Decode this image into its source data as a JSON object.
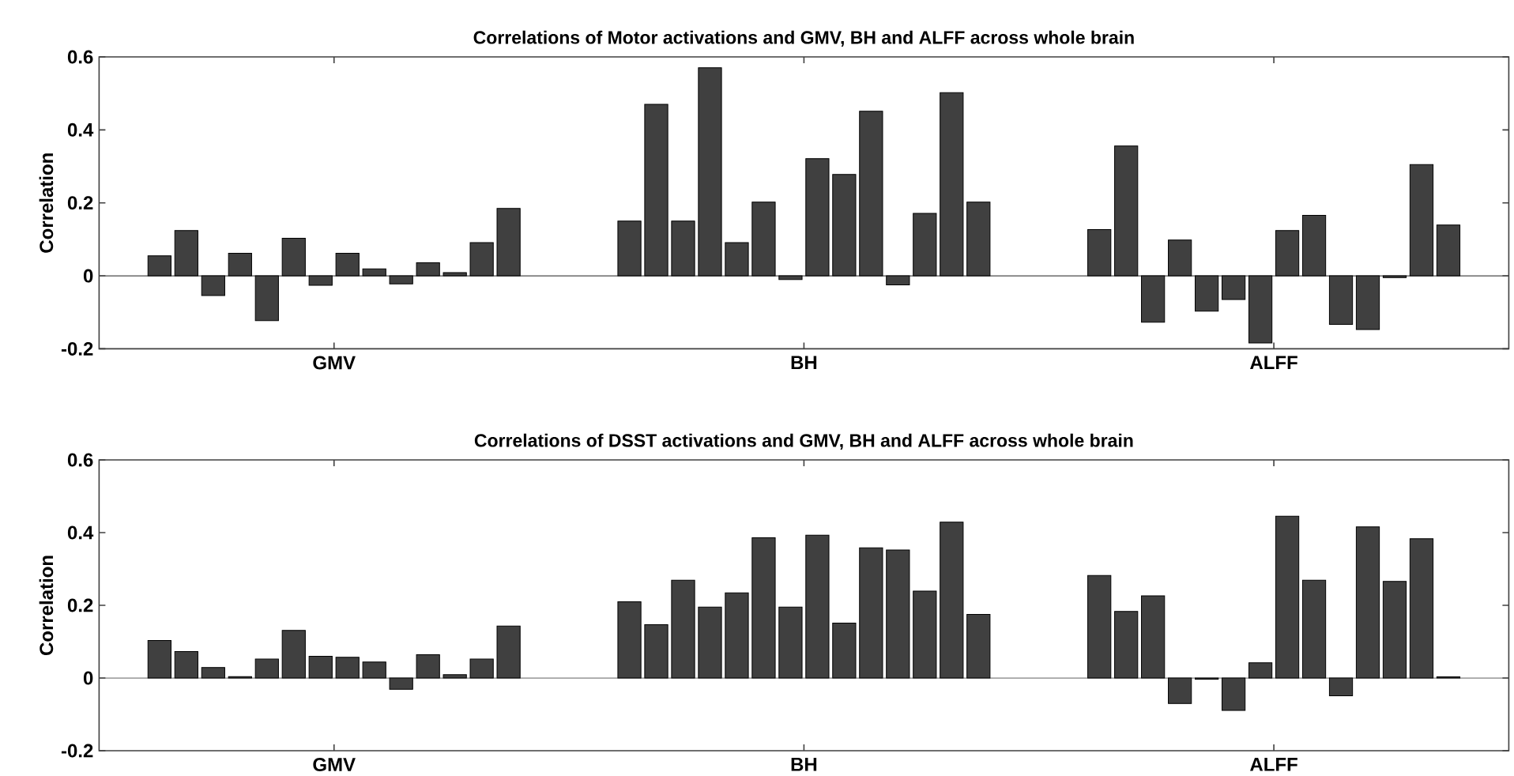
{
  "chart_data": [
    {
      "type": "bar",
      "title": "Correlations of Motor activations and GMV, BH and ALFF across whole brain",
      "ylabel": "Correlation",
      "categories": [
        "GMV",
        "BH",
        "ALFF"
      ],
      "ylim": [
        -0.2,
        0.6
      ],
      "yticks": [
        -0.2,
        0,
        0.2,
        0.4,
        0.6
      ],
      "series": [
        {
          "color": "#404040",
          "values": [
            0.055,
            0.15,
            0.127
          ]
        },
        {
          "color": "#404040",
          "values": [
            0.124,
            0.47,
            0.356
          ]
        },
        {
          "color": "#404040",
          "values": [
            -0.054,
            0.15,
            -0.127
          ]
        },
        {
          "color": "#404040",
          "values": [
            0.062,
            0.57,
            0.098
          ]
        },
        {
          "color": "#404040",
          "values": [
            -0.123,
            0.091,
            -0.097
          ]
        },
        {
          "color": "#404040",
          "values": [
            0.103,
            0.202,
            -0.065
          ]
        },
        {
          "color": "#404040",
          "values": [
            -0.026,
            -0.01,
            -0.184
          ]
        },
        {
          "color": "#404040",
          "values": [
            0.062,
            0.321,
            0.124
          ]
        },
        {
          "color": "#404040",
          "values": [
            0.019,
            0.278,
            0.166
          ]
        },
        {
          "color": "#404040",
          "values": [
            -0.022,
            0.451,
            -0.133
          ]
        },
        {
          "color": "#404040",
          "values": [
            0.036,
            -0.025,
            -0.147
          ]
        },
        {
          "color": "#404040",
          "values": [
            0.009,
            0.171,
            -0.005
          ]
        },
        {
          "color": "#404040",
          "values": [
            0.091,
            0.502,
            0.305
          ]
        },
        {
          "color": "#404040",
          "values": [
            0.185,
            0.202,
            0.139
          ]
        }
      ]
    },
    {
      "type": "bar",
      "title": "Correlations of DSST activations and GMV, BH and ALFF across whole brain",
      "ylabel": "Correlation",
      "categories": [
        "GMV",
        "BH",
        "ALFF"
      ],
      "ylim": [
        -0.2,
        0.6
      ],
      "yticks": [
        -0.2,
        0,
        0.2,
        0.4,
        0.6
      ],
      "series": [
        {
          "color": "#404040",
          "values": [
            0.103,
            0.21,
            0.282
          ]
        },
        {
          "color": "#404040",
          "values": [
            0.073,
            0.147,
            0.183
          ]
        },
        {
          "color": "#404040",
          "values": [
            0.029,
            0.269,
            0.226
          ]
        },
        {
          "color": "#404040",
          "values": [
            0.004,
            0.195,
            -0.07
          ]
        },
        {
          "color": "#404040",
          "values": [
            0.052,
            0.234,
            -0.003
          ]
        },
        {
          "color": "#404040",
          "values": [
            0.131,
            0.386,
            -0.089
          ]
        },
        {
          "color": "#404040",
          "values": [
            0.06,
            0.195,
            0.042
          ]
        },
        {
          "color": "#404040",
          "values": [
            0.057,
            0.393,
            0.445
          ]
        },
        {
          "color": "#404040",
          "values": [
            0.044,
            0.151,
            0.269
          ]
        },
        {
          "color": "#404040",
          "values": [
            -0.031,
            0.358,
            -0.049
          ]
        },
        {
          "color": "#404040",
          "values": [
            0.064,
            0.352,
            0.416
          ]
        },
        {
          "color": "#404040",
          "values": [
            0.009,
            0.239,
            0.266
          ]
        },
        {
          "color": "#404040",
          "values": [
            0.052,
            0.429,
            0.383
          ]
        },
        {
          "color": "#404040",
          "values": [
            0.143,
            0.175,
            0.003
          ]
        }
      ]
    }
  ]
}
